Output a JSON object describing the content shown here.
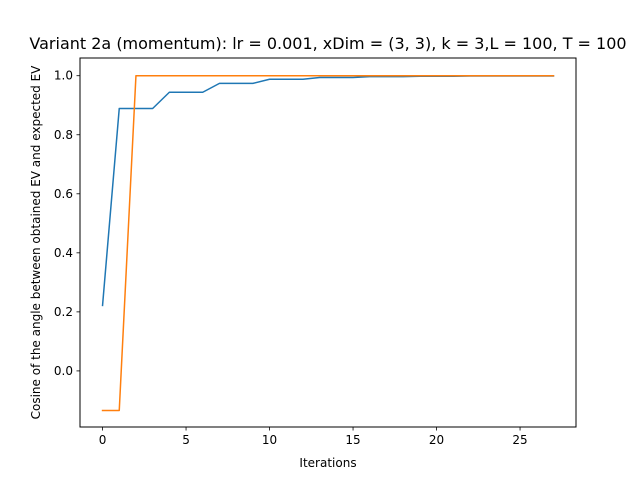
{
  "chart_data": {
    "type": "line",
    "title": "Variant 2a (momentum): lr = 0.001, xDim = (3, 3), k = 3,L = 100, T = 100",
    "xlabel": "Iterations",
    "ylabel": "Cosine of the angle between obtained EV and expected EV",
    "xlim": [
      -1.35,
      28.35
    ],
    "ylim": [
      -0.19,
      1.06
    ],
    "xticks": [
      0,
      5,
      10,
      15,
      20,
      25
    ],
    "yticks": [
      0.0,
      0.2,
      0.4,
      0.6,
      0.8,
      1.0
    ],
    "xtick_labels": [
      "0",
      "5",
      "10",
      "15",
      "20",
      "25"
    ],
    "ytick_labels": [
      "0.0",
      "0.2",
      "0.4",
      "0.6",
      "0.8",
      "1.0"
    ],
    "grid": false,
    "legend": false,
    "series": [
      {
        "color": "#1f77b4",
        "x": [
          0,
          1,
          2,
          3,
          4,
          5,
          6,
          7,
          8,
          9,
          10,
          11,
          12,
          13,
          14,
          15,
          16,
          17,
          18,
          19,
          20,
          21,
          22,
          23,
          24,
          25,
          26,
          27
        ],
        "values": [
          0.222,
          0.889,
          0.889,
          0.889,
          0.944,
          0.944,
          0.944,
          0.974,
          0.974,
          0.974,
          0.988,
          0.988,
          0.988,
          0.994,
          0.994,
          0.994,
          0.997,
          0.997,
          0.997,
          0.998,
          0.998,
          0.998,
          0.999,
          0.999,
          0.999,
          0.999,
          0.999,
          0.999
        ]
      },
      {
        "color": "#ff7f0e",
        "x": [
          0,
          1,
          2,
          3,
          4,
          5,
          6,
          7,
          8,
          9,
          10,
          11,
          12,
          13,
          14,
          15,
          16,
          17,
          18,
          19,
          20,
          21,
          22,
          23,
          24,
          25,
          26,
          27
        ],
        "values": [
          -0.134,
          -0.134,
          1.0,
          1.0,
          1.0,
          1.0,
          1.0,
          1.0,
          1.0,
          1.0,
          1.0,
          1.0,
          1.0,
          1.0,
          1.0,
          1.0,
          1.0,
          1.0,
          1.0,
          1.0,
          1.0,
          1.0,
          1.0,
          1.0,
          1.0,
          1.0,
          1.0,
          1.0
        ]
      }
    ]
  }
}
